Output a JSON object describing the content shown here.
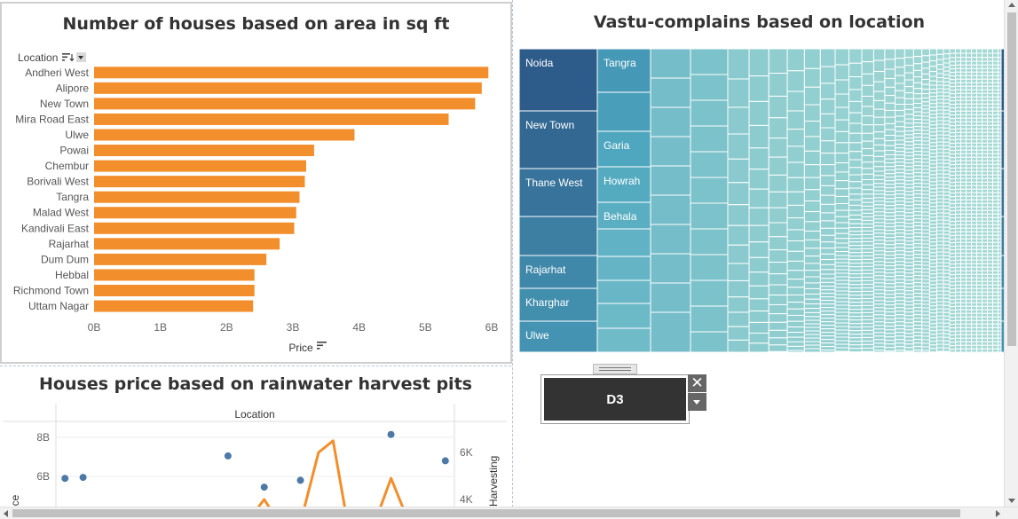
{
  "colors": {
    "bar": "#f28e2b",
    "scatter_point": "#4e79a7",
    "line": "#f28e2b",
    "treemap_dark": "#2e5c8a",
    "treemap_light": "#a8dcd6"
  },
  "icons": {
    "sort": "sort-descending-icon",
    "dropdown": "chevron-down-icon",
    "close": "close-icon"
  },
  "bar_panel": {
    "title": "Number of houses based on area in sq ft",
    "location_header": "Location"
  },
  "treemap_panel": {
    "title": "Vastu-complains based on location"
  },
  "scatter_panel": {
    "title": "Houses price based on rainwater harvest pits",
    "header": "Location",
    "left_axis_label": "ice",
    "right_axis_label": "Harvesting"
  },
  "filter_widget": {
    "value": "D3",
    "close_glyph": "✕"
  },
  "chart_data": [
    {
      "type": "bar",
      "orientation": "horizontal",
      "title": "Number of houses based on area in sq ft",
      "xlabel": "Price",
      "ylabel": "Location",
      "categories": [
        "Andheri West",
        "Alipore",
        "New Town",
        "Mira Road East",
        "Ulwe",
        "Powai",
        "Chembur",
        "Borivali West",
        "Tangra",
        "Malad West",
        "Kandivali East",
        "Rajarhat",
        "Dum Dum",
        "Hebbal",
        "Richmond Town",
        "Uttam Nagar"
      ],
      "values": [
        5.95,
        5.85,
        5.75,
        5.35,
        3.93,
        3.32,
        3.2,
        3.18,
        3.1,
        3.05,
        3.02,
        2.8,
        2.6,
        2.42,
        2.42,
        2.4
      ],
      "xlim": [
        0,
        6
      ],
      "xticks": [
        "0B",
        "1B",
        "2B",
        "3B",
        "4B",
        "5B",
        "6B"
      ],
      "grid": false,
      "sorted": "descending"
    },
    {
      "type": "heatmap",
      "subtype": "treemap",
      "title": "Vastu-complains based on location",
      "labels": [
        "Noida",
        "New Town",
        "Thane West",
        "Rajarhat",
        "Kharghar",
        "Ulwe",
        "Tangra",
        "Garia",
        "Howrah",
        "Behala"
      ]
    },
    {
      "type": "scatter",
      "title": "Houses price based on rainwater harvest pits",
      "xlabel": "Location",
      "ylabel": "ice",
      "y2label": "Harvesting",
      "yticks": [
        "8B",
        "6B"
      ],
      "y2ticks": [
        "6K",
        "4K"
      ],
      "ylim": [
        5,
        8.6
      ],
      "y2lim": [
        3.8,
        6.7
      ],
      "points": [
        {
          "x": 1,
          "y": 5.9
        },
        {
          "x": 2,
          "y": 5.95
        },
        {
          "x": 10,
          "y": 7.05
        },
        {
          "x": 12,
          "y": 5.45
        },
        {
          "x": 14,
          "y": 5.8
        },
        {
          "x": 19,
          "y": 8.15
        },
        {
          "x": 22,
          "y": 6.8
        }
      ],
      "line": [
        {
          "x": 11,
          "y": 3.0
        },
        {
          "x": 12,
          "y": 4.0
        },
        {
          "x": 13,
          "y": 2.8
        },
        {
          "x": 14,
          "y": 3.0
        },
        {
          "x": 15,
          "y": 6.0
        },
        {
          "x": 15.8,
          "y": 6.5
        },
        {
          "x": 16.6,
          "y": 3.0
        },
        {
          "x": 18,
          "y": 2.8
        },
        {
          "x": 19,
          "y": 4.9
        },
        {
          "x": 20,
          "y": 3.0
        }
      ],
      "xlim": [
        0.5,
        22.5
      ]
    }
  ]
}
